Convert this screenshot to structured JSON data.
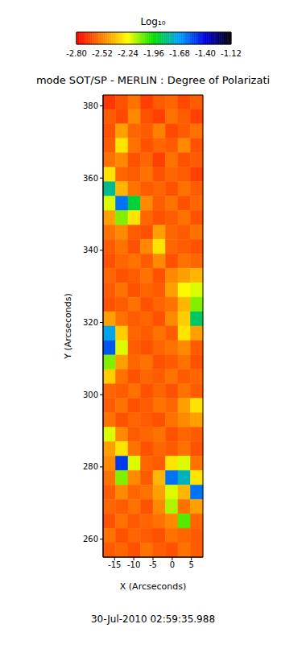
{
  "chart_data": {
    "type": "heatmap",
    "title": "mode SOT/SP - MERLIN : Degree of Polarizati",
    "subtitle": "30-Jul-2010 02:59:35.988",
    "x_label": "X (Arcseconds)",
    "y_label": "Y (Arcseconds)",
    "xlim": [
      -18,
      8
    ],
    "xticks": [
      -15,
      -10,
      -5,
      0,
      5
    ],
    "ylim": [
      255,
      383
    ],
    "yticks": [
      260,
      280,
      300,
      320,
      340,
      360,
      380
    ],
    "x_edges": [
      -18,
      -14.75,
      -11.5,
      -8.25,
      -5,
      -1.75,
      1.5,
      4.75,
      8
    ],
    "y_edges": [
      383,
      379,
      375,
      371,
      367,
      363,
      359,
      355,
      351,
      347,
      343,
      339,
      335,
      331,
      327,
      323,
      319,
      315,
      311,
      307,
      303,
      299,
      295,
      291,
      287,
      283,
      279,
      275,
      271,
      267,
      263,
      259,
      255
    ],
    "cells": [
      [
        -2.68,
        -2.62,
        -2.55,
        -2.66,
        -2.6,
        -2.58,
        -2.64,
        -2.6
      ],
      [
        -2.6,
        -2.64,
        -2.5,
        -2.62,
        -2.66,
        -2.55,
        -2.6,
        -2.66
      ],
      [
        -2.62,
        -2.45,
        -2.58,
        -2.6,
        -2.52,
        -2.64,
        -2.6,
        -2.55
      ],
      [
        -2.6,
        -2.3,
        -2.55,
        -2.62,
        -2.58,
        -2.6,
        -2.5,
        -2.62
      ],
      [
        -2.55,
        -2.5,
        -2.62,
        -2.58,
        -2.66,
        -2.55,
        -2.62,
        -2.6
      ],
      [
        -2.3,
        -2.58,
        -2.6,
        -2.55,
        -2.62,
        -2.58,
        -2.6,
        -2.66
      ],
      [
        -1.8,
        -2.4,
        -2.55,
        -2.6,
        -2.58,
        -2.62,
        -2.55,
        -2.6
      ],
      [
        -2.2,
        -1.6,
        -1.9,
        -2.5,
        -2.6,
        -2.55,
        -2.62,
        -2.58
      ],
      [
        -2.45,
        -2.1,
        -2.3,
        -2.58,
        -2.62,
        -2.6,
        -2.55,
        -2.62
      ],
      [
        -2.55,
        -2.5,
        -2.6,
        -2.62,
        -2.45,
        -2.58,
        -2.6,
        -2.55
      ],
      [
        -2.6,
        -2.55,
        -2.62,
        -2.5,
        -2.3,
        -2.58,
        -2.6,
        -2.62
      ],
      [
        -2.62,
        -2.58,
        -2.55,
        -2.6,
        -2.5,
        -2.62,
        -2.55,
        -2.58
      ],
      [
        -2.58,
        -2.62,
        -2.6,
        -2.55,
        -2.62,
        -2.5,
        -2.45,
        -2.4
      ],
      [
        -2.6,
        -2.55,
        -2.62,
        -2.58,
        -2.6,
        -2.45,
        -2.25,
        -2.2
      ],
      [
        -2.62,
        -2.6,
        -2.55,
        -2.62,
        -2.58,
        -2.55,
        -2.4,
        -2.1
      ],
      [
        -2.45,
        -2.55,
        -2.6,
        -2.58,
        -2.62,
        -2.5,
        -2.35,
        -1.85
      ],
      [
        -1.7,
        -2.35,
        -2.58,
        -2.6,
        -2.55,
        -2.6,
        -2.3,
        -2.45
      ],
      [
        -1.55,
        -2.2,
        -2.6,
        -2.62,
        -2.58,
        -2.55,
        -2.5,
        -2.6
      ],
      [
        -2.1,
        -2.45,
        -2.58,
        -2.55,
        -2.62,
        -2.6,
        -2.55,
        -2.62
      ],
      [
        -2.35,
        -2.55,
        -2.62,
        -2.58,
        -2.6,
        -2.55,
        -2.6,
        -2.58
      ],
      [
        -2.58,
        -2.6,
        -2.55,
        -2.62,
        -2.58,
        -2.62,
        -2.55,
        -2.6
      ],
      [
        -2.6,
        -2.55,
        -2.62,
        -2.6,
        -2.55,
        -2.58,
        -2.45,
        -2.3
      ],
      [
        -2.55,
        -2.62,
        -2.58,
        -2.6,
        -2.62,
        -2.55,
        -2.5,
        -2.45
      ],
      [
        -2.2,
        -2.5,
        -2.6,
        -2.58,
        -2.55,
        -2.62,
        -2.58,
        -2.6
      ],
      [
        -2.45,
        -2.3,
        -2.55,
        -2.62,
        -2.58,
        -2.6,
        -2.55,
        -2.62
      ],
      [
        -2.5,
        -1.5,
        -2.2,
        -2.58,
        -2.6,
        -2.3,
        -2.2,
        -2.55
      ],
      [
        -2.55,
        -2.1,
        -2.5,
        -2.6,
        -2.4,
        -1.6,
        -1.75,
        -2.3
      ],
      [
        -2.6,
        -2.5,
        -2.58,
        -2.55,
        -2.45,
        -2.2,
        -2.4,
        -1.6
      ],
      [
        -2.58,
        -2.6,
        -2.55,
        -2.62,
        -2.5,
        -2.15,
        -2.55,
        -2.45
      ],
      [
        -2.62,
        -2.55,
        -2.6,
        -2.58,
        -2.55,
        -2.5,
        -2.05,
        -2.58
      ],
      [
        -2.55,
        -2.62,
        -2.58,
        -2.6,
        -2.62,
        -2.55,
        -2.58,
        -2.6
      ],
      [
        -2.6,
        -2.58,
        -2.62,
        -2.55,
        -2.6,
        -2.62,
        -2.55,
        -2.6
      ]
    ],
    "colorbar": {
      "label": "Log₁₀",
      "range": [
        -2.8,
        -1.12
      ],
      "ticks": [
        {
          "value": -2.8,
          "label": "-2.80"
        },
        -2.52,
        -2.24,
        -1.96,
        -1.68,
        {
          "value": -1.4,
          "label": "-1.40"
        },
        -1.12
      ],
      "colors": [
        "#ff0000",
        "#ff8000",
        "#ffff00",
        "#00e000",
        "#00a0ff",
        "#0000e0",
        "#000000"
      ]
    }
  }
}
